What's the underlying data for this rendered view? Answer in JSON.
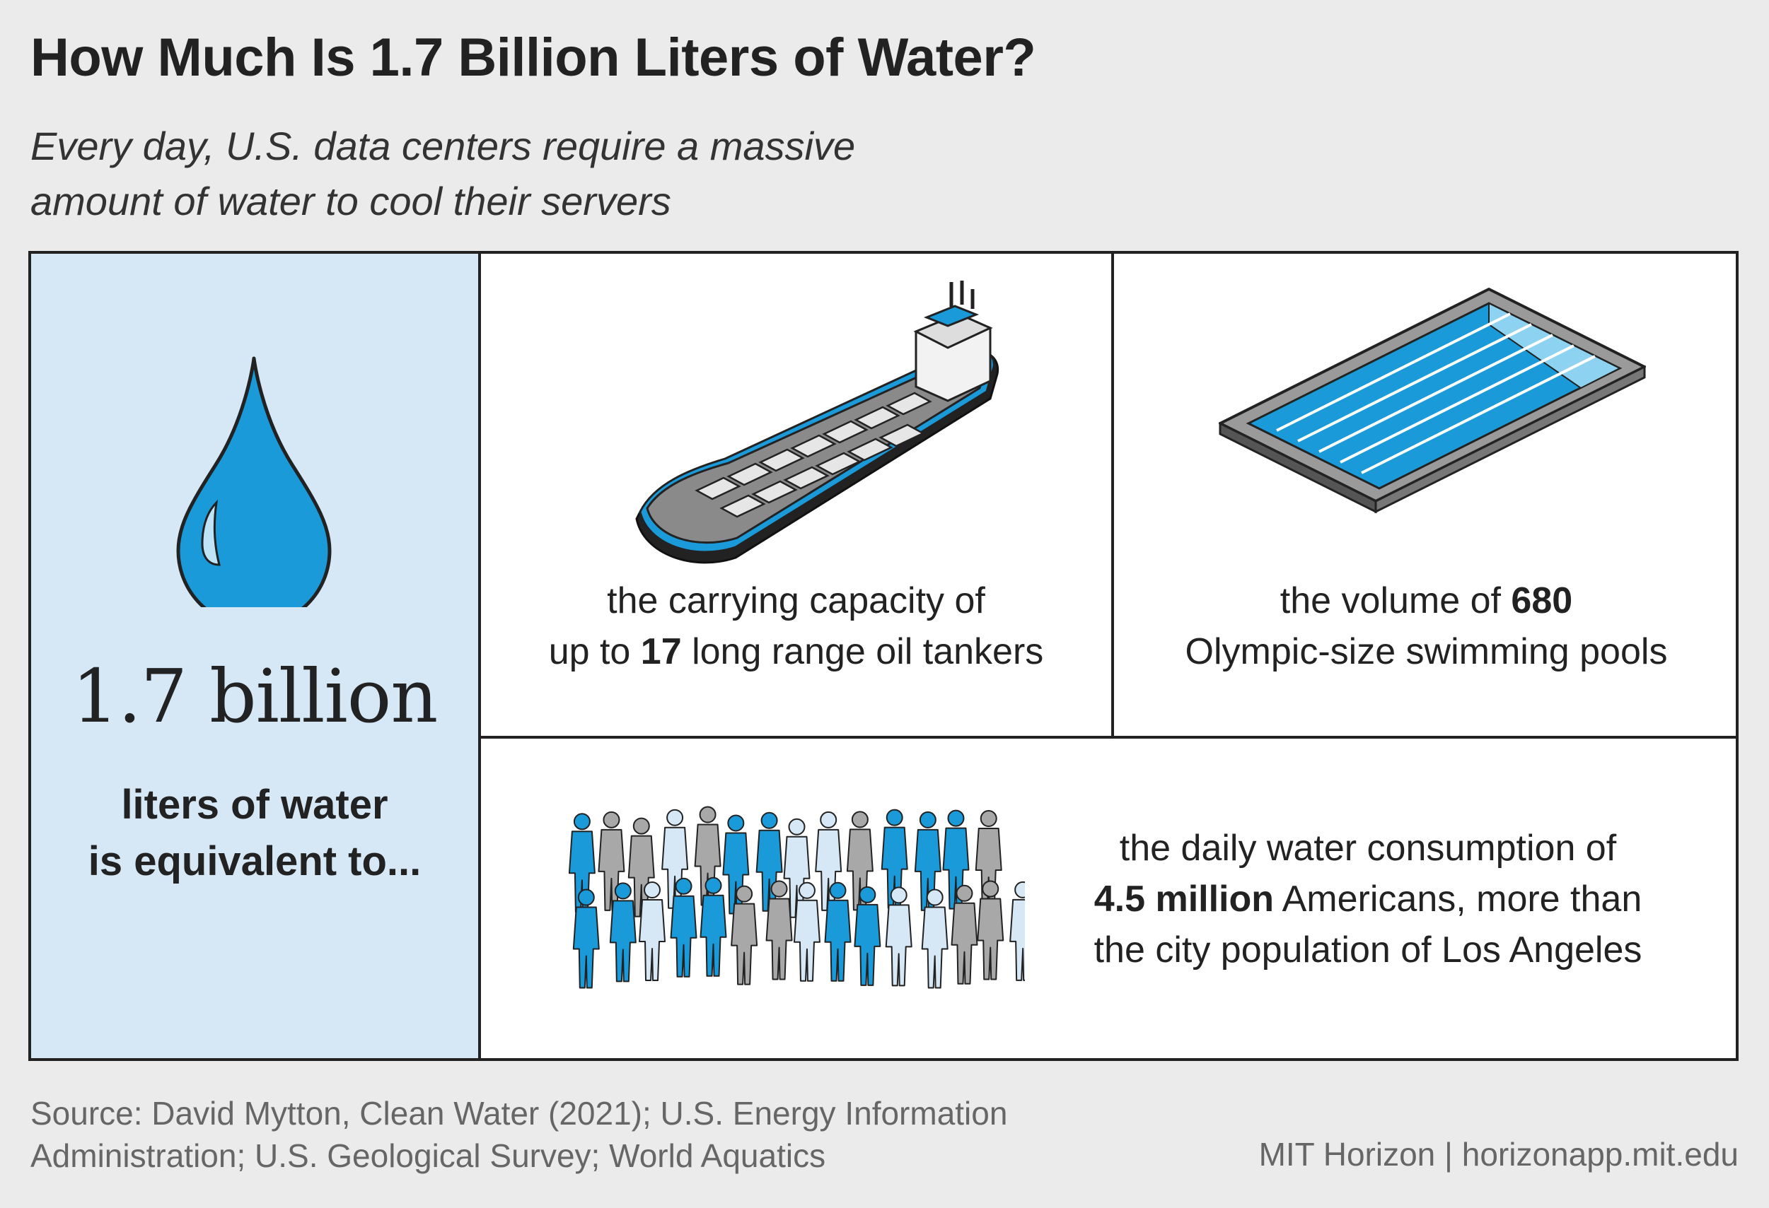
{
  "header": {
    "title": "How Much Is 1.7 Billion Liters of Water?",
    "subtitle_line1": "Every day, U.S. data centers require a massive",
    "subtitle_line2": "amount of water to cool their servers"
  },
  "left_panel": {
    "number": "1.7 billion",
    "caption_line1": "liters of water",
    "caption_line2": "is equivalent to..."
  },
  "tanker": {
    "line1": "the carrying capacity of",
    "line2_pre": "up to ",
    "line2_bold": "17",
    "line2_post": " long range oil tankers"
  },
  "pools": {
    "line1_pre": "the volume of ",
    "line1_bold": "680",
    "line2": "Olympic-size swimming pools"
  },
  "people": {
    "line1": "the daily water consumption of",
    "line2_bold": "4.5 million",
    "line2_post": " Americans, more than",
    "line3": "the city population of Los Angeles"
  },
  "footer": {
    "source_line1": "Source: David Mytton, Clean Water (2021); U.S. Energy Information",
    "source_line2": "Administration; U.S. Geological Survey; World Aquatics",
    "credit": "MIT Horizon | horizonapp.mit.edu"
  },
  "colors": {
    "background": "#ebebeb",
    "left_panel": "#d6e8f6",
    "water_blue": "#1a9ad9",
    "accent_dark": "#222222"
  },
  "icons": {
    "drop": "water-drop-icon",
    "ship": "oil-tanker-icon",
    "pool": "swimming-pool-icon",
    "crowd": "crowd-icon"
  }
}
